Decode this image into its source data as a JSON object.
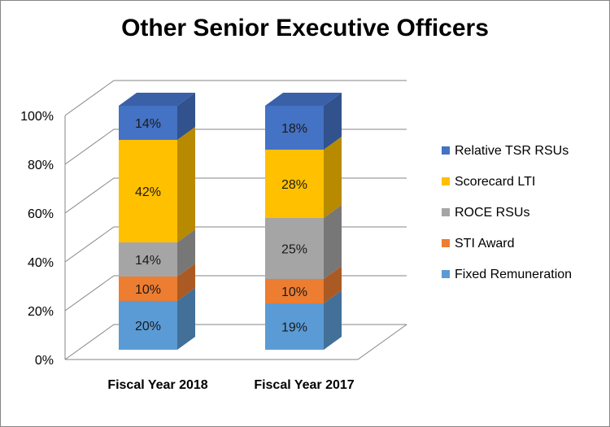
{
  "chart_data": {
    "type": "bar",
    "stacked": true,
    "percent_scale": true,
    "style": "3d",
    "title": "Other Senior Executive Officers",
    "xlabel": "",
    "ylabel": "",
    "ylim": [
      0,
      100
    ],
    "yticks": [
      "0%",
      "20%",
      "40%",
      "60%",
      "80%",
      "100%"
    ],
    "ytick_values": [
      0,
      20,
      40,
      60,
      80,
      100
    ],
    "categories": [
      "Fiscal Year 2018",
      "Fiscal Year 2017"
    ],
    "series": [
      {
        "name": "Fixed Remuneration",
        "color": "#5B9BD5",
        "values": [
          20,
          19
        ],
        "labels": [
          "20%",
          "19%"
        ]
      },
      {
        "name": "STI Award",
        "color": "#ED7D31",
        "values": [
          10,
          10
        ],
        "labels": [
          "10%",
          "10%"
        ]
      },
      {
        "name": "ROCE RSUs",
        "color": "#A5A5A5",
        "values": [
          14,
          25
        ],
        "labels": [
          "14%",
          "25%"
        ]
      },
      {
        "name": "Scorecard LTI",
        "color": "#FFC000",
        "values": [
          42,
          28
        ],
        "labels": [
          "42%",
          "28%"
        ]
      },
      {
        "name": "Relative TSR RSUs",
        "color": "#4472C4",
        "values": [
          14,
          18
        ],
        "labels": [
          "14%",
          "18%"
        ]
      }
    ],
    "legend": {
      "position": "right",
      "order": [
        "Relative TSR RSUs",
        "Scorecard LTI",
        "ROCE RSUs",
        "STI Award",
        "Fixed Remuneration"
      ]
    }
  }
}
